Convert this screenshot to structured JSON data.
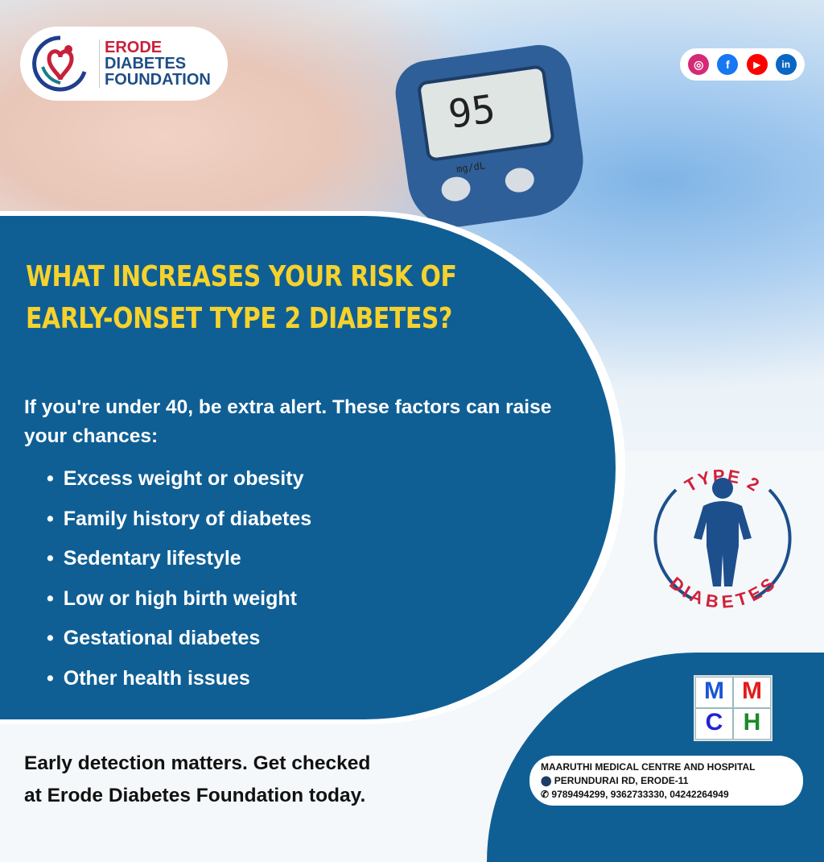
{
  "meter": {
    "reading": "95",
    "unit": "mg/dL"
  },
  "logo": {
    "line1": "ERODE",
    "line2": "DIABETES",
    "line3": "FOUNDATION"
  },
  "social": [
    {
      "icon": "instagram-icon",
      "label": "◎",
      "color": "#d62976"
    },
    {
      "icon": "facebook-icon",
      "label": "f",
      "color": "#1877f2"
    },
    {
      "icon": "youtube-icon",
      "label": "▶",
      "color": "#ff0000"
    },
    {
      "icon": "linkedin-icon",
      "label": "in",
      "color": "#0a66c2"
    }
  ],
  "title": {
    "line1": "WHAT INCREASES YOUR RISK OF",
    "line2": "EARLY-ONSET TYPE 2 DIABETES?"
  },
  "intro": "If you're under 40, be extra alert. These factors can raise your chances:",
  "factors": [
    "Excess weight or obesity",
    "Family history of diabetes",
    "Sedentary lifestyle",
    "Low or high birth weight",
    "Gestational diabetes",
    "Other health issues"
  ],
  "footer": {
    "line1": "Early detection matters. Get checked",
    "line2": "at Erode Diabetes Foundation today."
  },
  "badge": {
    "top": "TYPE 2",
    "bottom": "DIABETES"
  },
  "hospital": {
    "logo": [
      "M",
      "M",
      "C",
      "H"
    ],
    "name": "MAARUTHI MEDICAL CENTRE AND HOSPITAL",
    "address": "PERUNDURAI RD, ERODE-11",
    "phones": "9789494299, 9362733330, 04242264949"
  },
  "colors": {
    "panel": "#0f5f95",
    "title": "#f6d22c",
    "badge_red": "#d3203a",
    "badge_blue": "#1d4f8c"
  }
}
